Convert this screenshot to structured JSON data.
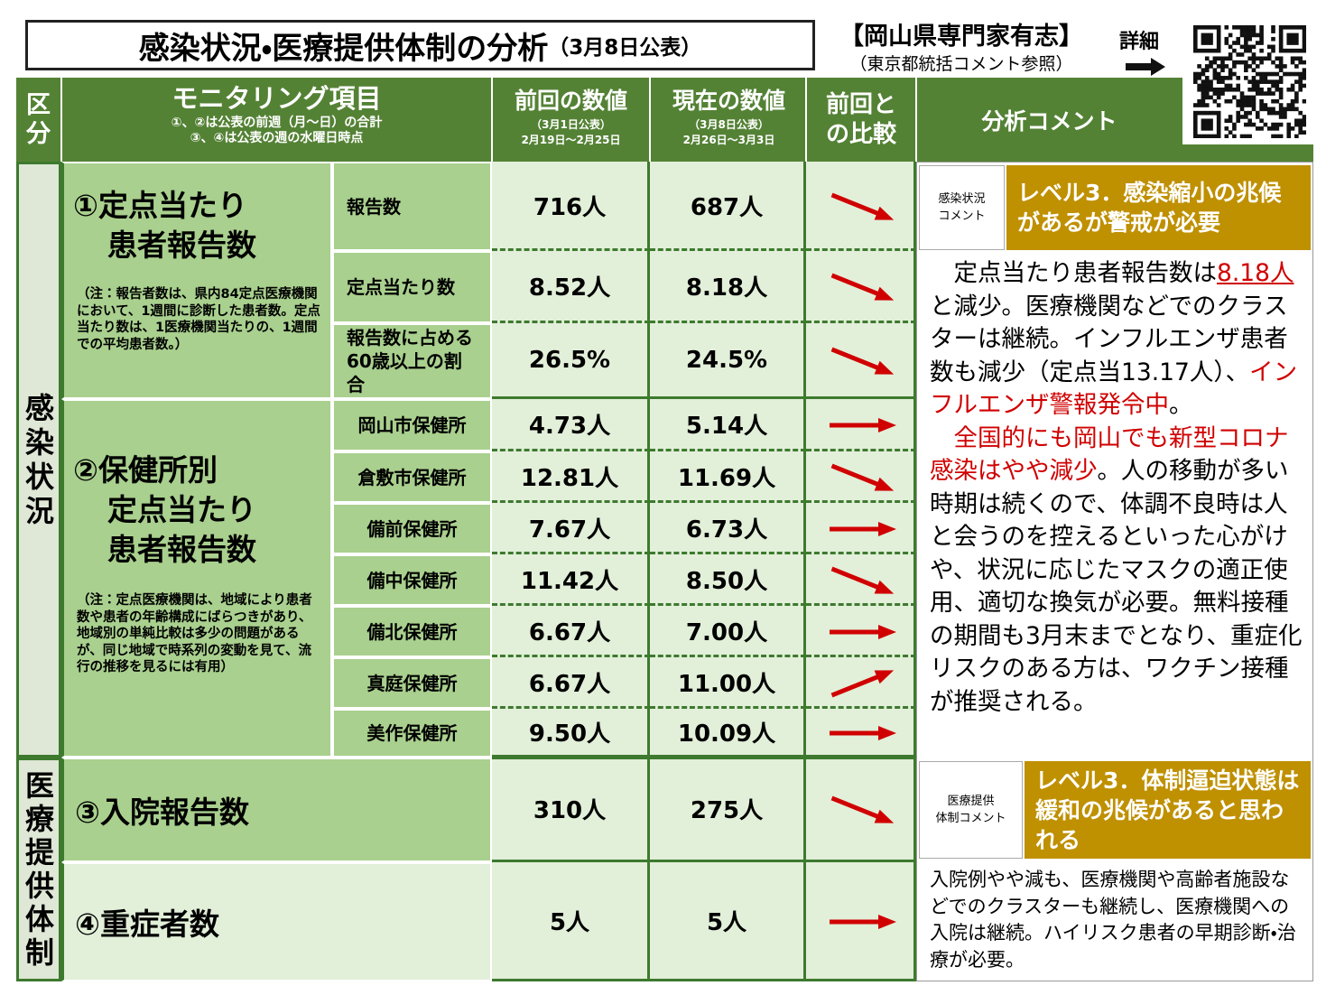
{
  "header": {
    "title": "感染状況・医療提供体制の分析",
    "date": "（3月8日公表）",
    "source": "【岡山県専門家有志】",
    "source_note": "（東京都統括コメント参照）",
    "detail": "詳細"
  },
  "table": {
    "columns": {
      "category": "区分",
      "item": "モニタリング項目",
      "item_notes": [
        "①、②は公表の前週（月～日）の合計",
        "③、④は公表の週の水曜日時点"
      ],
      "prev": "前回の数値",
      "prev_notes": [
        "（3月1日公表）",
        "2月19日～2月25日"
      ],
      "cur": "現在の数値",
      "cur_notes": [
        "（3月8日公表）",
        "2月26日～3月3日"
      ],
      "compare": "前回との比較",
      "comment": "分析コメント"
    },
    "sections": [
      {
        "label": "感染状況",
        "groups": [
          {
            "title": [
              "①定点当たり",
              "患者報告数"
            ],
            "note": "（注：報告者数は、県内84定点医療機関において、1週間に診断した患者数。定点当たり数は、1医療機関当たりの、1週間での平均患者数。）",
            "rows": [
              {
                "name": "報告数",
                "prev": "716人",
                "cur": "687人"
              },
              {
                "name": "定点当たり数",
                "prev": "8.52人",
                "cur": "8.18人"
              },
              {
                "name": [
                  "報告数に占める",
                  "60歳以上の割合"
                ],
                "prev": "26.5%",
                "cur": "24.5%"
              }
            ]
          },
          {
            "title": [
              "②保健所別",
              "定点当たり",
              "患者報告数"
            ],
            "note": "（注：定点医療機関は、地域により患者数や患者の年齢構成にばらつきがあり、地域別の単純比較は多少の問題があるが、同じ地域で時系列の変動を見て、流行の推移を見るには有用）",
            "rows": [
              {
                "name": "岡山市保健所",
                "prev": "4.73人",
                "cur": "5.14人"
              },
              {
                "name": "倉敷市保健所",
                "prev": "12.81人",
                "cur": "11.69人"
              },
              {
                "name": "備前保健所",
                "prev": "7.67人",
                "cur": "6.73人"
              },
              {
                "name": "備中保健所",
                "prev": "11.42人",
                "cur": "8.50人"
              },
              {
                "name": "備北保健所",
                "prev": "6.67人",
                "cur": "7.00人"
              },
              {
                "name": "真庭保健所",
                "prev": "6.67人",
                "cur": "11.00人"
              },
              {
                "name": "美作保健所",
                "prev": "9.50人",
                "cur": "10.09人"
              }
            ]
          }
        ],
        "comment": {
          "label": [
            "感染状況",
            "コメント"
          ],
          "level": "レベル3．感染縮小の兆候があるが警戒が必要",
          "paragraphs": [
            [
              {
                "text": "定点当たり患者報告数は"
              },
              {
                "text": "8.18人",
                "red": true,
                "underline": true
              },
              {
                "text": "と減少。医療機関などでのクラスターは継続。インフルエンザ患者数も減少（定点当13.17人）、"
              },
              {
                "text": "インフルエンザ警報発令中",
                "red": true
              },
              {
                "text": "。"
              }
            ],
            [
              {
                "text": "全国的にも岡山でも新型コロナ感染はやや減少",
                "red": true
              },
              {
                "text": "。人の移動が多い時期は続くので、体調不良時は人と会うのを控えるといった心がけや、状況に応じたマスクの適正使用、適切な換気が必要。無料接種の期間も3月末までとなり、重症化リスクのある方は、ワクチン接種が推奨される。"
              }
            ]
          ]
        }
      },
      {
        "label": "医療提供体制",
        "rows": [
          {
            "name": "③入院報告数",
            "prev": "310人",
            "cur": "275人"
          },
          {
            "name": "④重症者数",
            "prev": "5人",
            "cur": "5人"
          }
        ],
        "comment": {
          "label": [
            "医療提供",
            "体制コメント"
          ],
          "level": "レベル3．体制逼迫状態は緩和の兆候があると思われる",
          "text": "入院例やや減も、医療機関や高齢者施設などでのクラスターも継続し、医療機関への入院は継続。ハイリスク患者の早期診断・治療が必要。"
        }
      }
    ]
  }
}
